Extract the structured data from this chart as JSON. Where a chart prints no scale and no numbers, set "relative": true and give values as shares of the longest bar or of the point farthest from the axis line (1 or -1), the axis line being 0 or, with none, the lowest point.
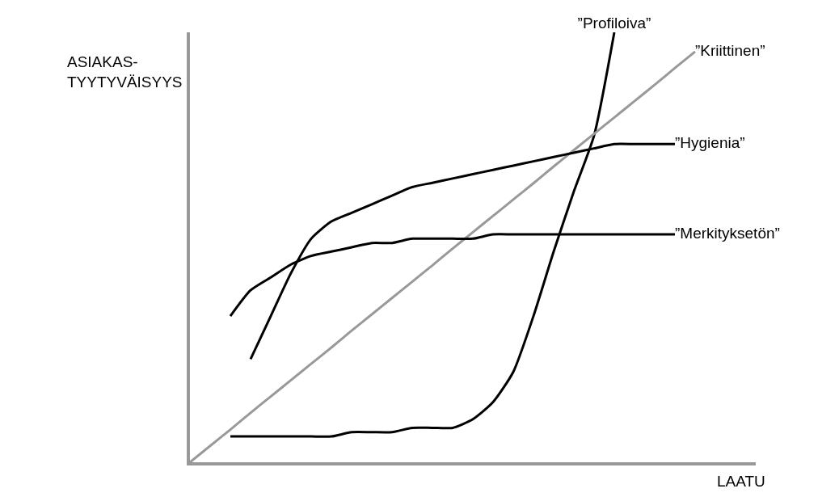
{
  "chart_data": {
    "type": "line",
    "relative": true,
    "xlabel": "LAATU",
    "ylabel": "ASIAKAS-\nTYYTYVÄISYYS",
    "legend": false,
    "marker": "none",
    "categories": [
      null,
      null,
      null,
      null,
      null,
      null,
      null,
      null,
      null,
      null,
      null,
      null,
      null,
      null,
      null,
      null,
      null,
      null,
      null,
      null,
      null,
      null,
      null,
      null,
      null,
      null,
      null,
      null,
      null
    ],
    "series": [
      {
        "name": "”Profiloiva”",
        "color": "#000000",
        "values": [
          null,
          null,
          0.06,
          0.06,
          0.06,
          0.06,
          0.06,
          0.06,
          0.07,
          0.07,
          0.07,
          0.08,
          0.08,
          0.08,
          0.1,
          0.14,
          0.21,
          0.34,
          0.49,
          0.63,
          0.76,
          1.0,
          null,
          null,
          null,
          null,
          null,
          null,
          null
        ]
      },
      {
        "name": "”Kriittinen”",
        "color": "#999999",
        "values": [
          0.0,
          0.038,
          0.076,
          0.115,
          0.153,
          0.191,
          0.229,
          0.267,
          0.306,
          0.344,
          0.382,
          0.42,
          0.458,
          0.497,
          0.535,
          0.573,
          0.611,
          0.649,
          0.688,
          0.726,
          0.764,
          0.802,
          0.84,
          0.878,
          0.917,
          0.955,
          null,
          null,
          null
        ]
      },
      {
        "name": "”Hygienia”",
        "color": "#000000",
        "values": [
          null,
          null,
          null,
          0.24,
          0.34,
          0.44,
          0.52,
          0.56,
          0.58,
          0.6,
          0.62,
          0.64,
          0.65,
          0.66,
          0.67,
          0.68,
          0.69,
          0.7,
          0.71,
          0.72,
          0.73,
          0.74,
          0.74,
          0.74,
          0.74,
          null,
          null,
          null,
          null
        ]
      },
      {
        "name": "”Merkityksetön”",
        "color": "#000000",
        "values": [
          null,
          null,
          0.34,
          0.4,
          0.43,
          0.46,
          0.48,
          0.49,
          0.5,
          0.51,
          0.51,
          0.52,
          0.52,
          0.52,
          0.52,
          0.53,
          0.53,
          0.53,
          0.53,
          0.53,
          0.53,
          0.53,
          0.53,
          0.53,
          0.53,
          null,
          null,
          null,
          null
        ]
      }
    ]
  }
}
